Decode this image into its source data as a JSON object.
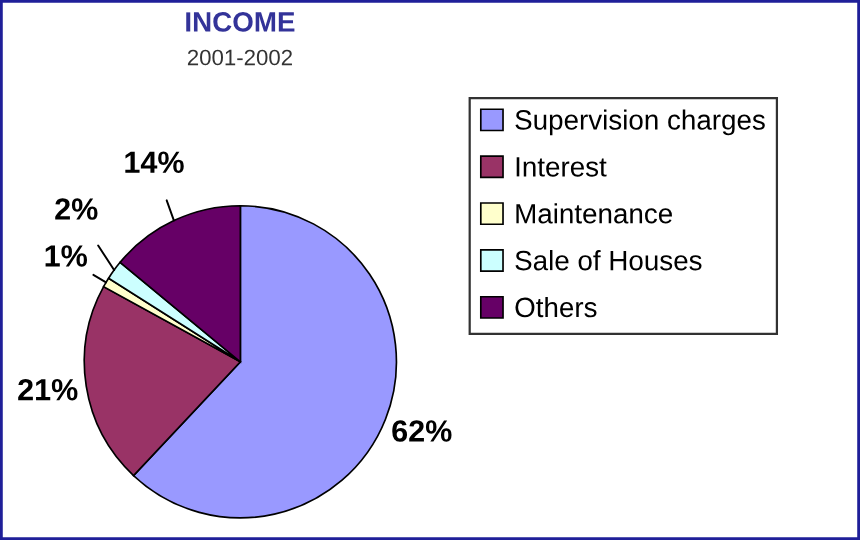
{
  "chart_data": {
    "type": "pie",
    "title": "INCOME",
    "subtitle": "2001-2002",
    "categories": [
      "Supervision charges",
      "Interest",
      "Maintenance",
      "Sale of Houses",
      "Others"
    ],
    "values": [
      62,
      21,
      1,
      2,
      14
    ],
    "colors": [
      "#9999ff",
      "#993366",
      "#ffffcc",
      "#ccffff",
      "#660066"
    ],
    "value_labels": [
      "62%",
      "21%",
      "1%",
      "2%",
      "14%"
    ],
    "legend": "right"
  }
}
